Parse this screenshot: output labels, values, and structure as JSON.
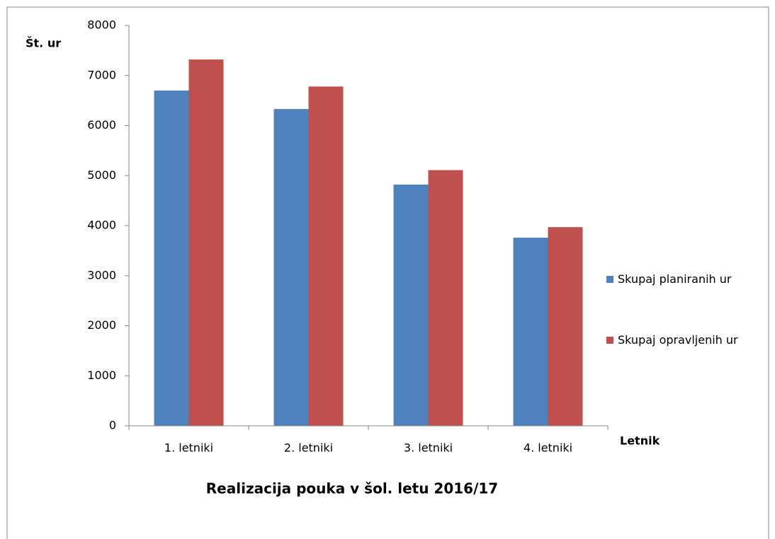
{
  "chart_data": {
    "type": "bar",
    "title": "Realizacija pouka v šol. letu 2016/17",
    "y_label": "Št. ur",
    "x_label": "Letnik",
    "categories": [
      "1. letniki",
      "2. letniki",
      "3. letniki",
      "4. letniki"
    ],
    "series": [
      {
        "name": "Skupaj planiranih ur",
        "color": "#4f81bd",
        "values": [
          6700,
          6330,
          4820,
          3760
        ]
      },
      {
        "name": "Skupaj opravljenih ur",
        "color": "#c0504d",
        "values": [
          7320,
          6780,
          5110,
          3970
        ]
      }
    ],
    "ylim": [
      0,
      8000
    ],
    "yticks": [
      0,
      1000,
      2000,
      3000,
      4000,
      5000,
      6000,
      7000,
      8000
    ],
    "legend": "right"
  }
}
